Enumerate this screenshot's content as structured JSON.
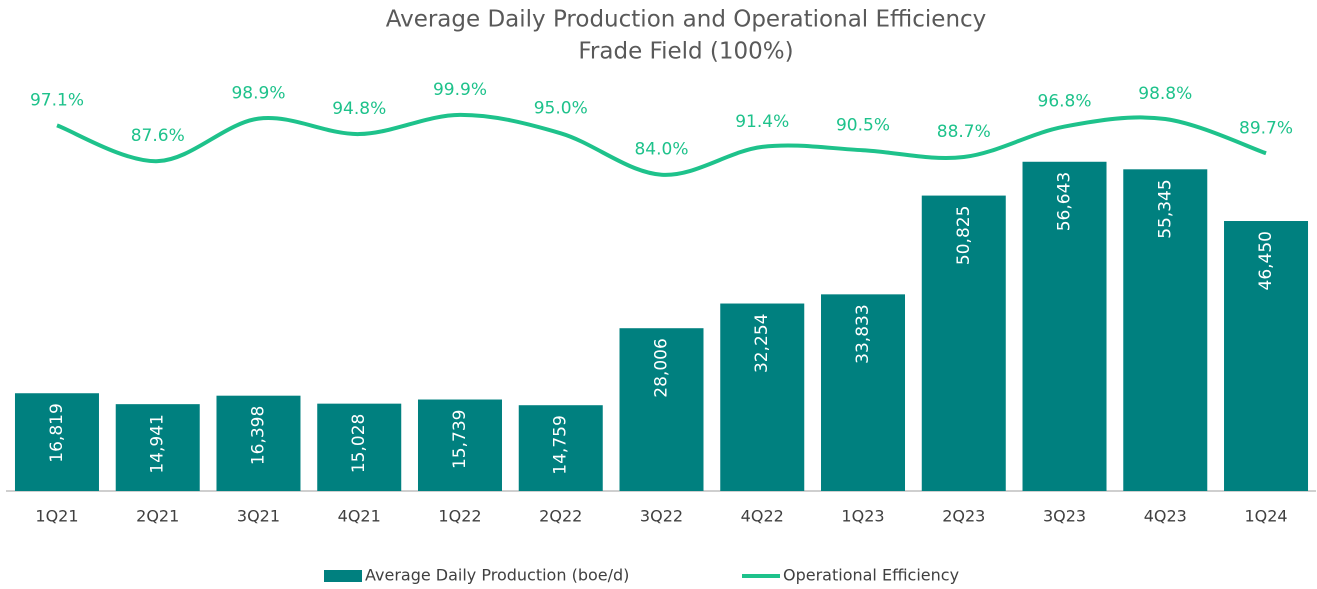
{
  "chart_data": {
    "type": "bar",
    "title": "Average Daily Production and Operational Efficiency",
    "subtitle": "Frade Field (100%)",
    "categories": [
      "1Q21",
      "2Q21",
      "3Q21",
      "4Q21",
      "1Q22",
      "2Q22",
      "3Q22",
      "4Q22",
      "1Q23",
      "2Q23",
      "3Q23",
      "4Q23",
      "1Q24"
    ],
    "series": [
      {
        "name": "Average Daily Production (boe/d)",
        "type": "bar",
        "color": "#00807f",
        "values": [
          16819,
          14941,
          16398,
          15028,
          15739,
          14759,
          28006,
          32254,
          33833,
          50825,
          56643,
          55345,
          46450
        ],
        "value_labels": [
          "16,819",
          "14,941",
          "16,398",
          "15,028",
          "15,739",
          "14,759",
          "28,006",
          "32,254",
          "33,833",
          "50,825",
          "56,643",
          "55,345",
          "46,450"
        ]
      },
      {
        "name": "Operational Efficiency",
        "type": "line",
        "axis": "y2",
        "color": "#1ec28b",
        "values": [
          97.1,
          87.6,
          98.9,
          94.8,
          99.9,
          95.0,
          84.0,
          91.4,
          90.5,
          88.7,
          96.8,
          98.8,
          89.7
        ],
        "value_labels": [
          "97.1%",
          "87.6%",
          "98.9%",
          "94.8%",
          "99.9%",
          "95.0%",
          "84.0%",
          "91.4%",
          "90.5%",
          "88.7%",
          "96.8%",
          "98.8%",
          "89.7%"
        ]
      }
    ],
    "ylim": [
      0,
      80000
    ],
    "y2lim": [
      0,
      123.5
    ],
    "legend": "bottom"
  }
}
